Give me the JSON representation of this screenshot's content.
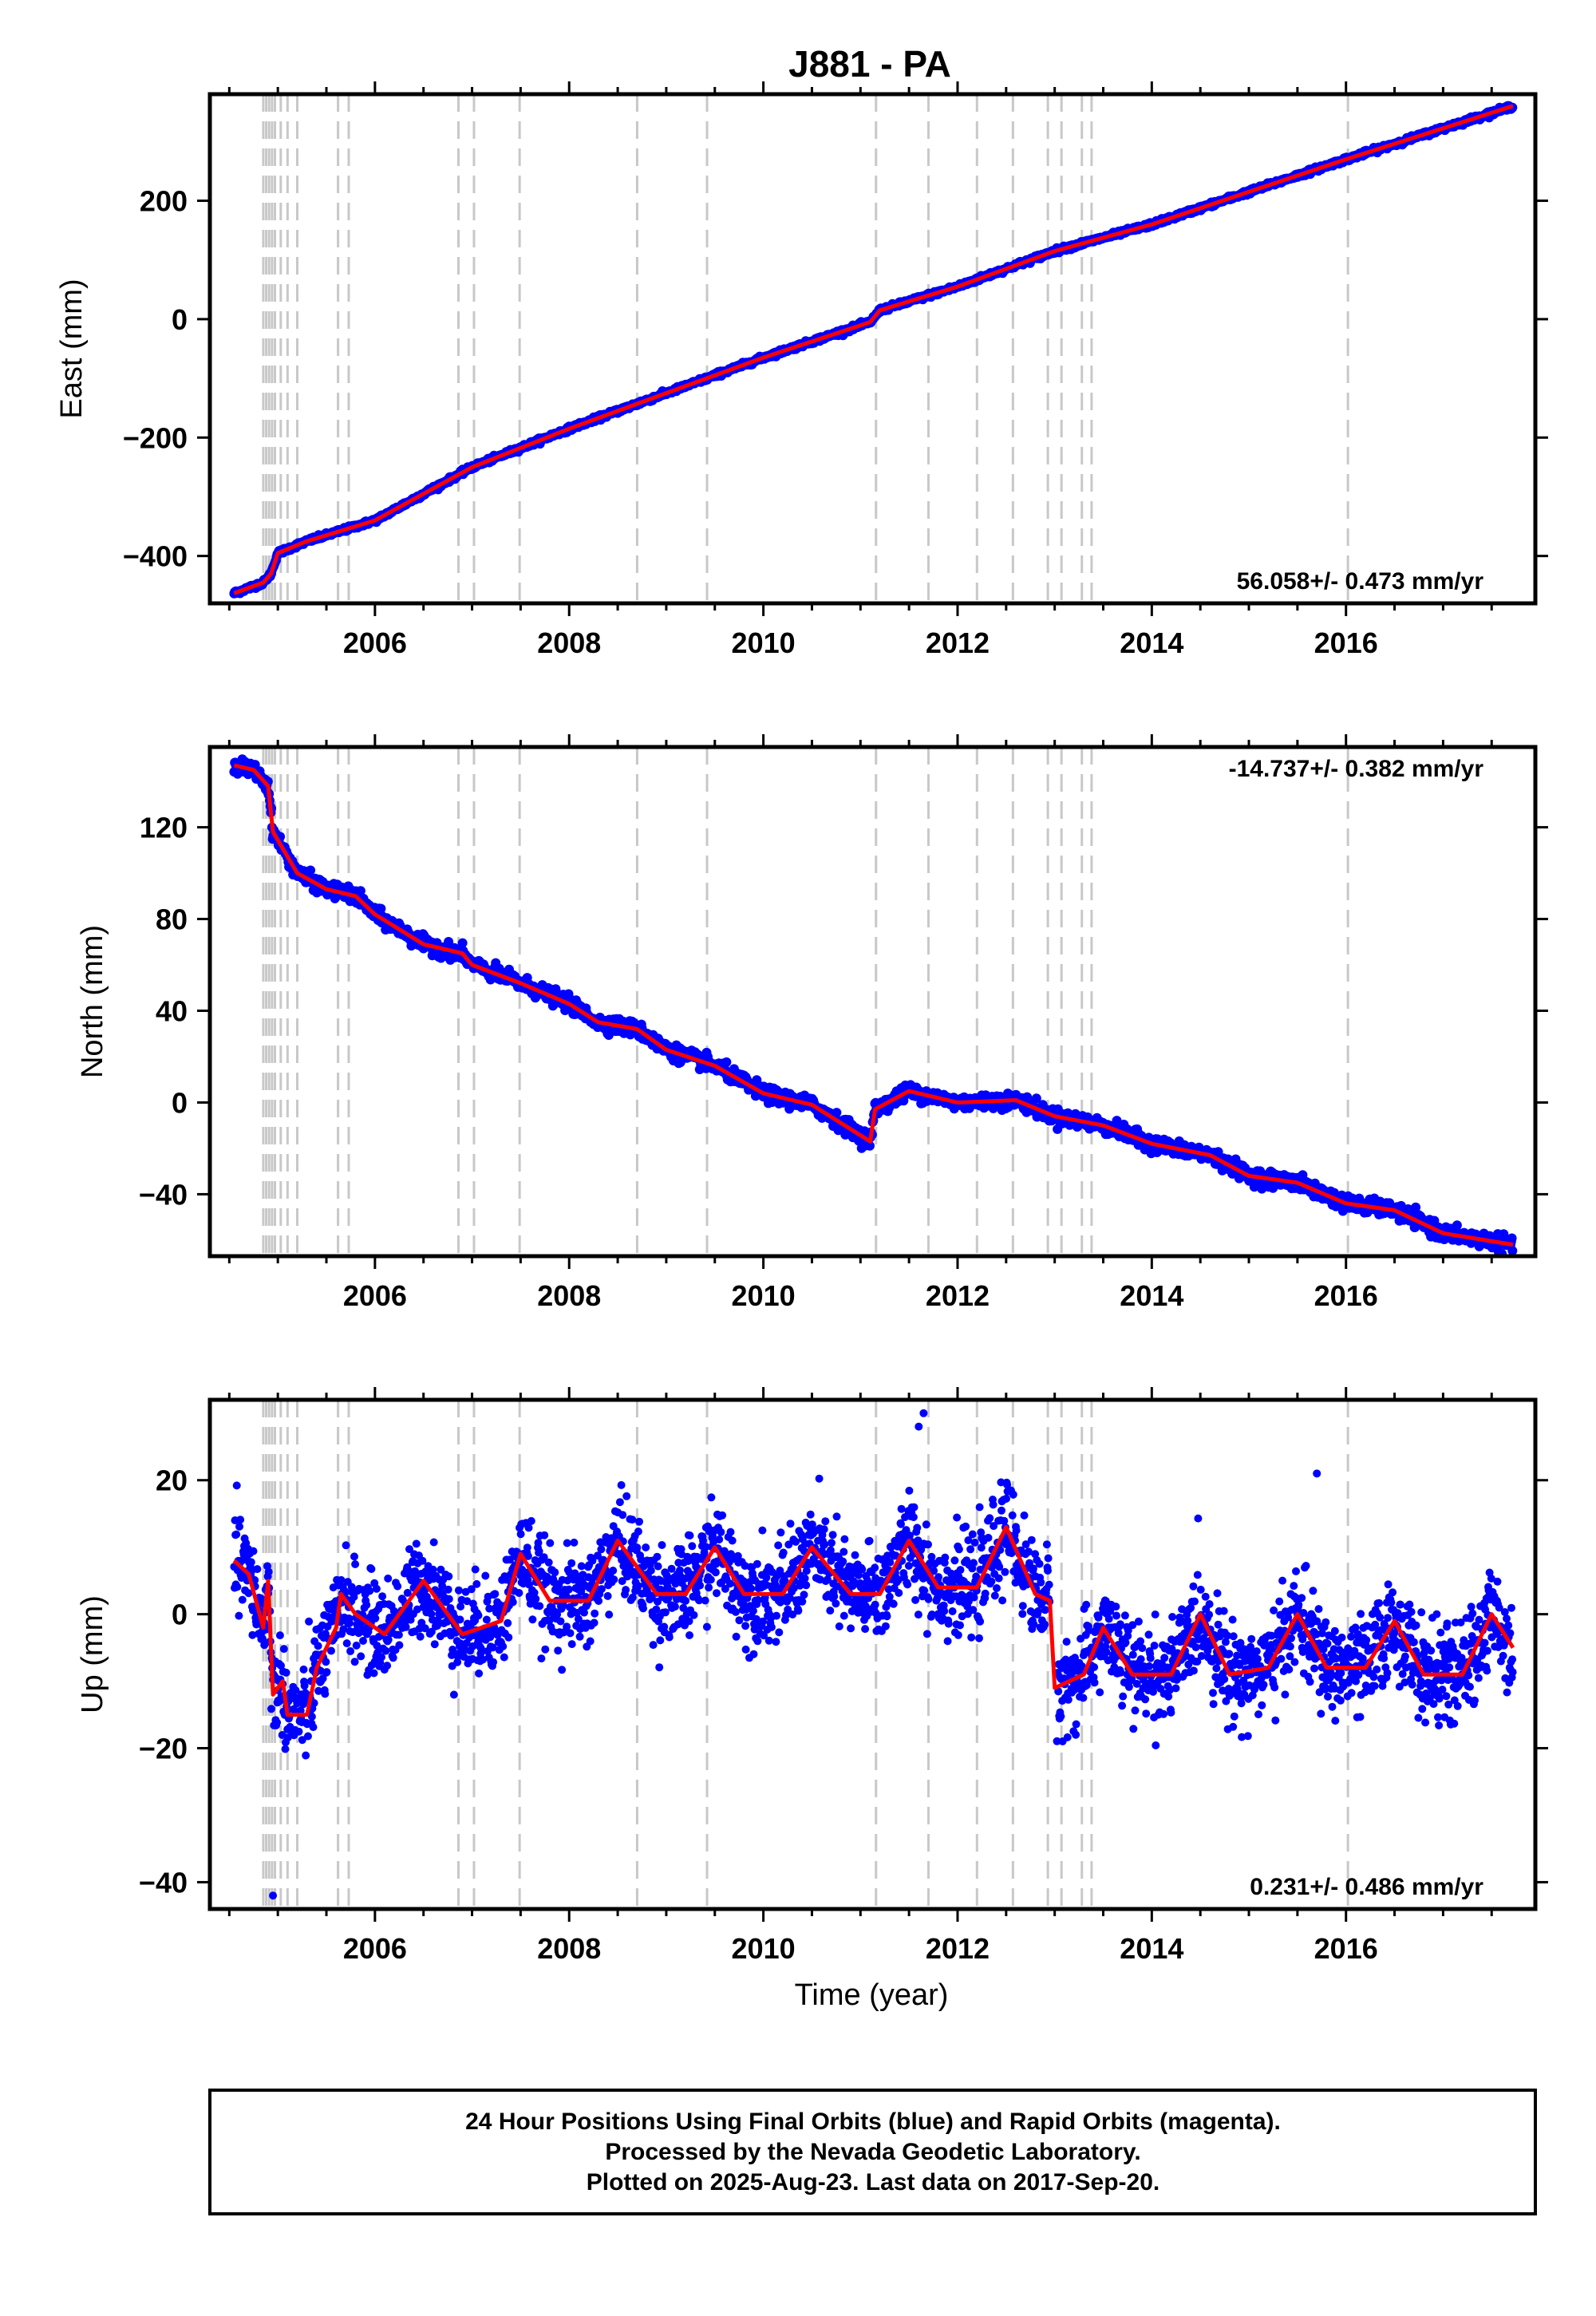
{
  "title": "J881 - PA",
  "colors": {
    "final_points": "#0000ff",
    "fit_line": "#ff0000",
    "event_lines": "#c8c8c8",
    "frame": "#000000"
  },
  "chart_data": [
    {
      "type": "scatter",
      "name": "east",
      "ylabel": "East (mm)",
      "xlabel": "",
      "xlim": [
        2004.3,
        2017.95
      ],
      "ylim": [
        -480,
        380
      ],
      "yticks": [
        -400,
        -200,
        0,
        200
      ],
      "xticks": [
        2006,
        2008,
        2010,
        2012,
        2014,
        2016
      ],
      "rate": "56.058+/- 0.473 mm/yr",
      "rate_position": "bottom-right",
      "fit_knots": [
        [
          2004.55,
          -463
        ],
        [
          2004.85,
          -445
        ],
        [
          2004.93,
          -430
        ],
        [
          2005.0,
          -395
        ],
        [
          2005.3,
          -375
        ],
        [
          2006.0,
          -340
        ],
        [
          2007.0,
          -250
        ],
        [
          2008.0,
          -185
        ],
        [
          2009.0,
          -125
        ],
        [
          2010.0,
          -65
        ],
        [
          2011.1,
          -5
        ],
        [
          2011.2,
          15
        ],
        [
          2012.0,
          55
        ],
        [
          2013.0,
          115
        ],
        [
          2014.0,
          160
        ],
        [
          2015.0,
          215
        ],
        [
          2016.0,
          270
        ],
        [
          2017.72,
          360
        ]
      ],
      "scatter": 1.8
    },
    {
      "type": "scatter",
      "name": "north",
      "ylabel": "North (mm)",
      "xlabel": "",
      "xlim": [
        2004.3,
        2017.95
      ],
      "ylim": [
        -67,
        155
      ],
      "yticks": [
        -40,
        0,
        40,
        80,
        120
      ],
      "xticks": [
        2006,
        2008,
        2010,
        2012,
        2014,
        2016
      ],
      "rate": "-14.737+/- 0.382 mm/yr",
      "rate_position": "top-right",
      "fit_knots": [
        [
          2004.55,
          147
        ],
        [
          2004.75,
          145
        ],
        [
          2004.9,
          138
        ],
        [
          2004.95,
          118
        ],
        [
          2005.2,
          100
        ],
        [
          2005.5,
          93
        ],
        [
          2005.8,
          90
        ],
        [
          2006.0,
          82
        ],
        [
          2006.5,
          69
        ],
        [
          2006.9,
          65
        ],
        [
          2007.0,
          60
        ],
        [
          2007.5,
          52
        ],
        [
          2008.0,
          43
        ],
        [
          2008.3,
          35
        ],
        [
          2008.7,
          32
        ],
        [
          2009.0,
          23
        ],
        [
          2009.5,
          16
        ],
        [
          2010.0,
          4
        ],
        [
          2010.5,
          -1
        ],
        [
          2011.1,
          -17
        ],
        [
          2011.15,
          -3
        ],
        [
          2011.5,
          5
        ],
        [
          2012.0,
          0
        ],
        [
          2012.6,
          1
        ],
        [
          2013.0,
          -6
        ],
        [
          2013.5,
          -10
        ],
        [
          2014.0,
          -18
        ],
        [
          2014.6,
          -23
        ],
        [
          2015.0,
          -32
        ],
        [
          2015.5,
          -35
        ],
        [
          2016.0,
          -44
        ],
        [
          2016.5,
          -47
        ],
        [
          2017.0,
          -57
        ],
        [
          2017.72,
          -62
        ]
      ],
      "scatter": 1.6
    },
    {
      "type": "scatter",
      "name": "up",
      "ylabel": "Up (mm)",
      "xlabel": "Time (year)",
      "xlim": [
        2004.3,
        2017.95
      ],
      "ylim": [
        -44,
        32
      ],
      "yticks": [
        -40,
        -20,
        0,
        20
      ],
      "xticks": [
        2006,
        2008,
        2010,
        2012,
        2014,
        2016
      ],
      "rate": "0.231+/- 0.486 mm/yr",
      "rate_position": "bottom-right",
      "fit_knots": [
        [
          2004.55,
          8
        ],
        [
          2004.7,
          6
        ],
        [
          2004.85,
          -2
        ],
        [
          2004.9,
          5
        ],
        [
          2004.95,
          -12
        ],
        [
          2005.05,
          -10
        ],
        [
          2005.1,
          -15
        ],
        [
          2005.3,
          -15
        ],
        [
          2005.4,
          -8
        ],
        [
          2005.6,
          -2
        ],
        [
          2005.65,
          3
        ],
        [
          2005.8,
          0
        ],
        [
          2006.1,
          -3
        ],
        [
          2006.5,
          5
        ],
        [
          2006.9,
          -3
        ],
        [
          2007.3,
          -1
        ],
        [
          2007.5,
          9
        ],
        [
          2007.8,
          2
        ],
        [
          2008.2,
          2
        ],
        [
          2008.5,
          11
        ],
        [
          2008.9,
          3
        ],
        [
          2009.2,
          3
        ],
        [
          2009.5,
          10
        ],
        [
          2009.8,
          3
        ],
        [
          2010.2,
          3
        ],
        [
          2010.5,
          10
        ],
        [
          2010.9,
          3
        ],
        [
          2011.2,
          3
        ],
        [
          2011.5,
          11
        ],
        [
          2011.8,
          4
        ],
        [
          2012.2,
          4
        ],
        [
          2012.5,
          13
        ],
        [
          2012.8,
          3
        ],
        [
          2012.95,
          2
        ],
        [
          2013.0,
          -11
        ],
        [
          2013.3,
          -9
        ],
        [
          2013.5,
          -2
        ],
        [
          2013.8,
          -9
        ],
        [
          2014.2,
          -9
        ],
        [
          2014.5,
          0
        ],
        [
          2014.8,
          -9
        ],
        [
          2015.2,
          -8
        ],
        [
          2015.5,
          0
        ],
        [
          2015.8,
          -8
        ],
        [
          2016.2,
          -8
        ],
        [
          2016.5,
          -1
        ],
        [
          2016.8,
          -9
        ],
        [
          2017.2,
          -9
        ],
        [
          2017.5,
          0
        ],
        [
          2017.72,
          -5
        ]
      ],
      "scatter": 3.5,
      "outliers": [
        [
          2004.95,
          -42
        ],
        [
          2011.65,
          30
        ],
        [
          2011.6,
          28
        ],
        [
          2015.7,
          21
        ]
      ]
    }
  ],
  "event_lines": [
    2004.85,
    2004.88,
    2004.91,
    2004.94,
    2004.97,
    2005.03,
    2005.1,
    2005.2,
    2005.62,
    2005.73,
    2006.86,
    2007.02,
    2007.49,
    2008.7,
    2009.42,
    2011.16,
    2011.7,
    2012.2,
    2012.57,
    2012.93,
    2013.07,
    2013.28,
    2013.38,
    2016.02
  ],
  "caption": {
    "line1": "24 Hour Positions Using Final Orbits (blue) and Rapid Orbits (magenta).",
    "line2": "Processed by the Nevada Geodetic Laboratory.",
    "line3": "Plotted on 2025-Aug-23. Last data on 2017-Sep-20."
  }
}
